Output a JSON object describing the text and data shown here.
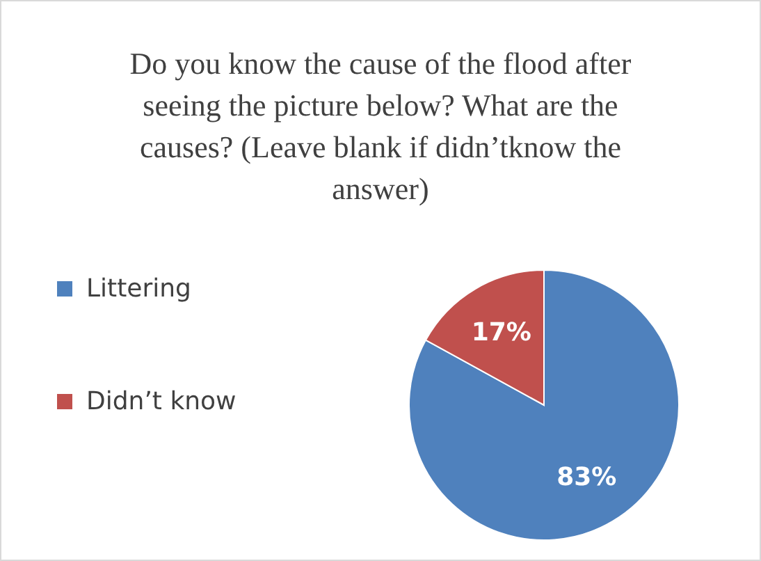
{
  "chart_data": {
    "type": "pie",
    "title": "Do you know the cause of the flood after seeing the picture below? What are the causes? (Leave blank if didn’tknow the answer)",
    "categories": [
      "Littering",
      "Didn’t know"
    ],
    "values": [
      83,
      17
    ],
    "colors": [
      "#4f81bd",
      "#c0504d"
    ],
    "value_labels": [
      "83%",
      "17%"
    ],
    "legend": "left"
  }
}
